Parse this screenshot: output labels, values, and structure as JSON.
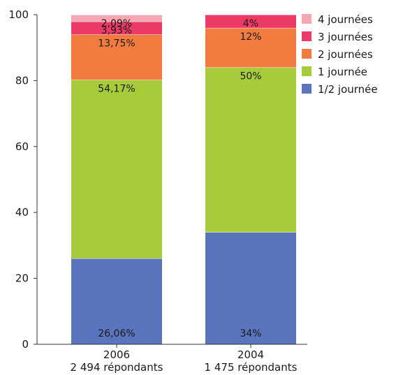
{
  "chart_data": {
    "type": "bar",
    "stacked": true,
    "categories": [
      "2006",
      "2004"
    ],
    "category_sublabels": [
      "2 494 répondants",
      "1 475 répondants"
    ],
    "ylim": [
      0,
      100
    ],
    "yticks": [
      0,
      20,
      40,
      60,
      80,
      100
    ],
    "grid": false,
    "legend_position": "top-right",
    "series": [
      {
        "name": "1/2 journée",
        "color": "#5a74bd",
        "values": [
          26.06,
          34
        ],
        "labels": [
          "26,06%",
          "34%"
        ]
      },
      {
        "name": "1 journée",
        "color": "#a6cc3b",
        "values": [
          54.17,
          50
        ],
        "labels": [
          "54,17%",
          "50%"
        ]
      },
      {
        "name": "2 journées",
        "color": "#f27b3f",
        "values": [
          13.75,
          12
        ],
        "labels": [
          "13,75%",
          "12%"
        ]
      },
      {
        "name": "3 journées",
        "color": "#ed3a66",
        "values": [
          3.93,
          4
        ],
        "labels": [
          "3,93%",
          "4%"
        ]
      },
      {
        "name": "4 journées",
        "color": "#f5a8b1",
        "values": [
          2.09,
          0
        ],
        "labels": [
          "2,09%",
          ""
        ]
      }
    ]
  }
}
